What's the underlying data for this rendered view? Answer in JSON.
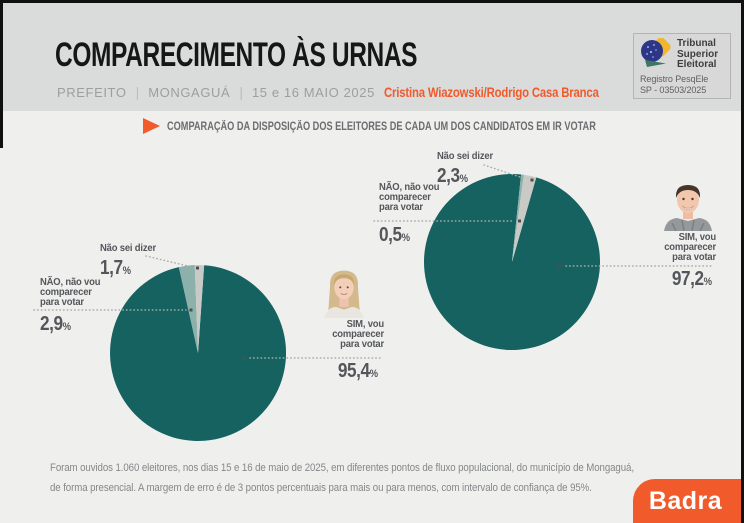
{
  "page": {
    "title": "COMPARECIMENTO ÀS URNAS",
    "subtitle": {
      "office": "PREFEITO",
      "separator": "|",
      "city": "MONGAGUÁ",
      "date": "15 e 16 MAIO 2025",
      "candidates": "Cristina Wiazowski/Rodrigo Casa Branca"
    }
  },
  "tse_badge": {
    "org": [
      "Tribunal",
      "Superior",
      "Eleitoral"
    ],
    "registry": [
      "Registro PesqEle",
      "SP - 03503/2025"
    ]
  },
  "section_heading": "COMPARAÇÃO DA DISPOSIÇÃO DOS ELEITORES DE CADA UM DOS CANDIDATOS EM IR VOTAR",
  "chart_data": [
    {
      "type": "pie",
      "candidate": "Cristina Wiazowski",
      "position": "left",
      "start_angle_deg_from_12": 4,
      "slices": [
        {
          "label": "SIM, vou comparecer para votar",
          "value": 95.4,
          "display": "95,4%",
          "color": "#156260"
        },
        {
          "label": "NÃO, não vou comparecer para votar",
          "value": 2.9,
          "display": "2,9%",
          "color": "#8bb1aa"
        },
        {
          "label": "Não sei dizer",
          "value": 1.7,
          "display": "1,7%",
          "color": "#c9cac6"
        }
      ]
    },
    {
      "type": "pie",
      "candidate": "Rodrigo Casa Branca",
      "position": "right",
      "start_angle_deg_from_12": 16,
      "slices": [
        {
          "label": "SIM, vou comparecer para votar",
          "value": 97.2,
          "display": "97,2%",
          "color": "#156260"
        },
        {
          "label": "NÃO, não vou comparecer para votar",
          "value": 0.5,
          "display": "0,5%",
          "color": "#8bb1aa"
        },
        {
          "label": "Não sei dizer",
          "value": 2.3,
          "display": "2,3%",
          "color": "#c9cac6"
        }
      ]
    }
  ],
  "callouts": {
    "percent_sign": "%",
    "left": {
      "ns_label": "Não sei dizer",
      "ns_value": "1,7",
      "nao_lines": [
        "NÃO, não vou",
        "comparecer",
        "para votar"
      ],
      "nao_value": "2,9",
      "sim_lines": [
        "SIM, vou",
        "comparecer",
        "para votar"
      ],
      "sim_value": "95,4"
    },
    "right": {
      "ns_label": "Não sei dizer",
      "ns_value": "2,3",
      "nao_lines": [
        "NÃO, não vou",
        "comparecer",
        "para votar"
      ],
      "nao_value": "0,5",
      "sim_lines": [
        "SIM, vou",
        "comparecer",
        "para votar"
      ],
      "sim_value": "97,2"
    }
  },
  "footer": {
    "methodology": [
      "Foram ouvidos 1.060 eleitores, nos dias 15 e 16 de maio de 2025, em diferentes pontos de fluxo populacional, do município de Mongaguá,",
      "de forma presencial. A margem de erro é de 3 pontos percentuais para mais ou para menos, com intervalo de confiança de 95%."
    ],
    "brand": "Badra"
  },
  "colors": {
    "accent_orange": "#f15a2b",
    "pie_yes": "#156260",
    "pie_no": "#8bb1aa",
    "pie_unsure": "#c9cac6",
    "header_bg": "#dadbdb",
    "page_bg": "#efefed"
  }
}
